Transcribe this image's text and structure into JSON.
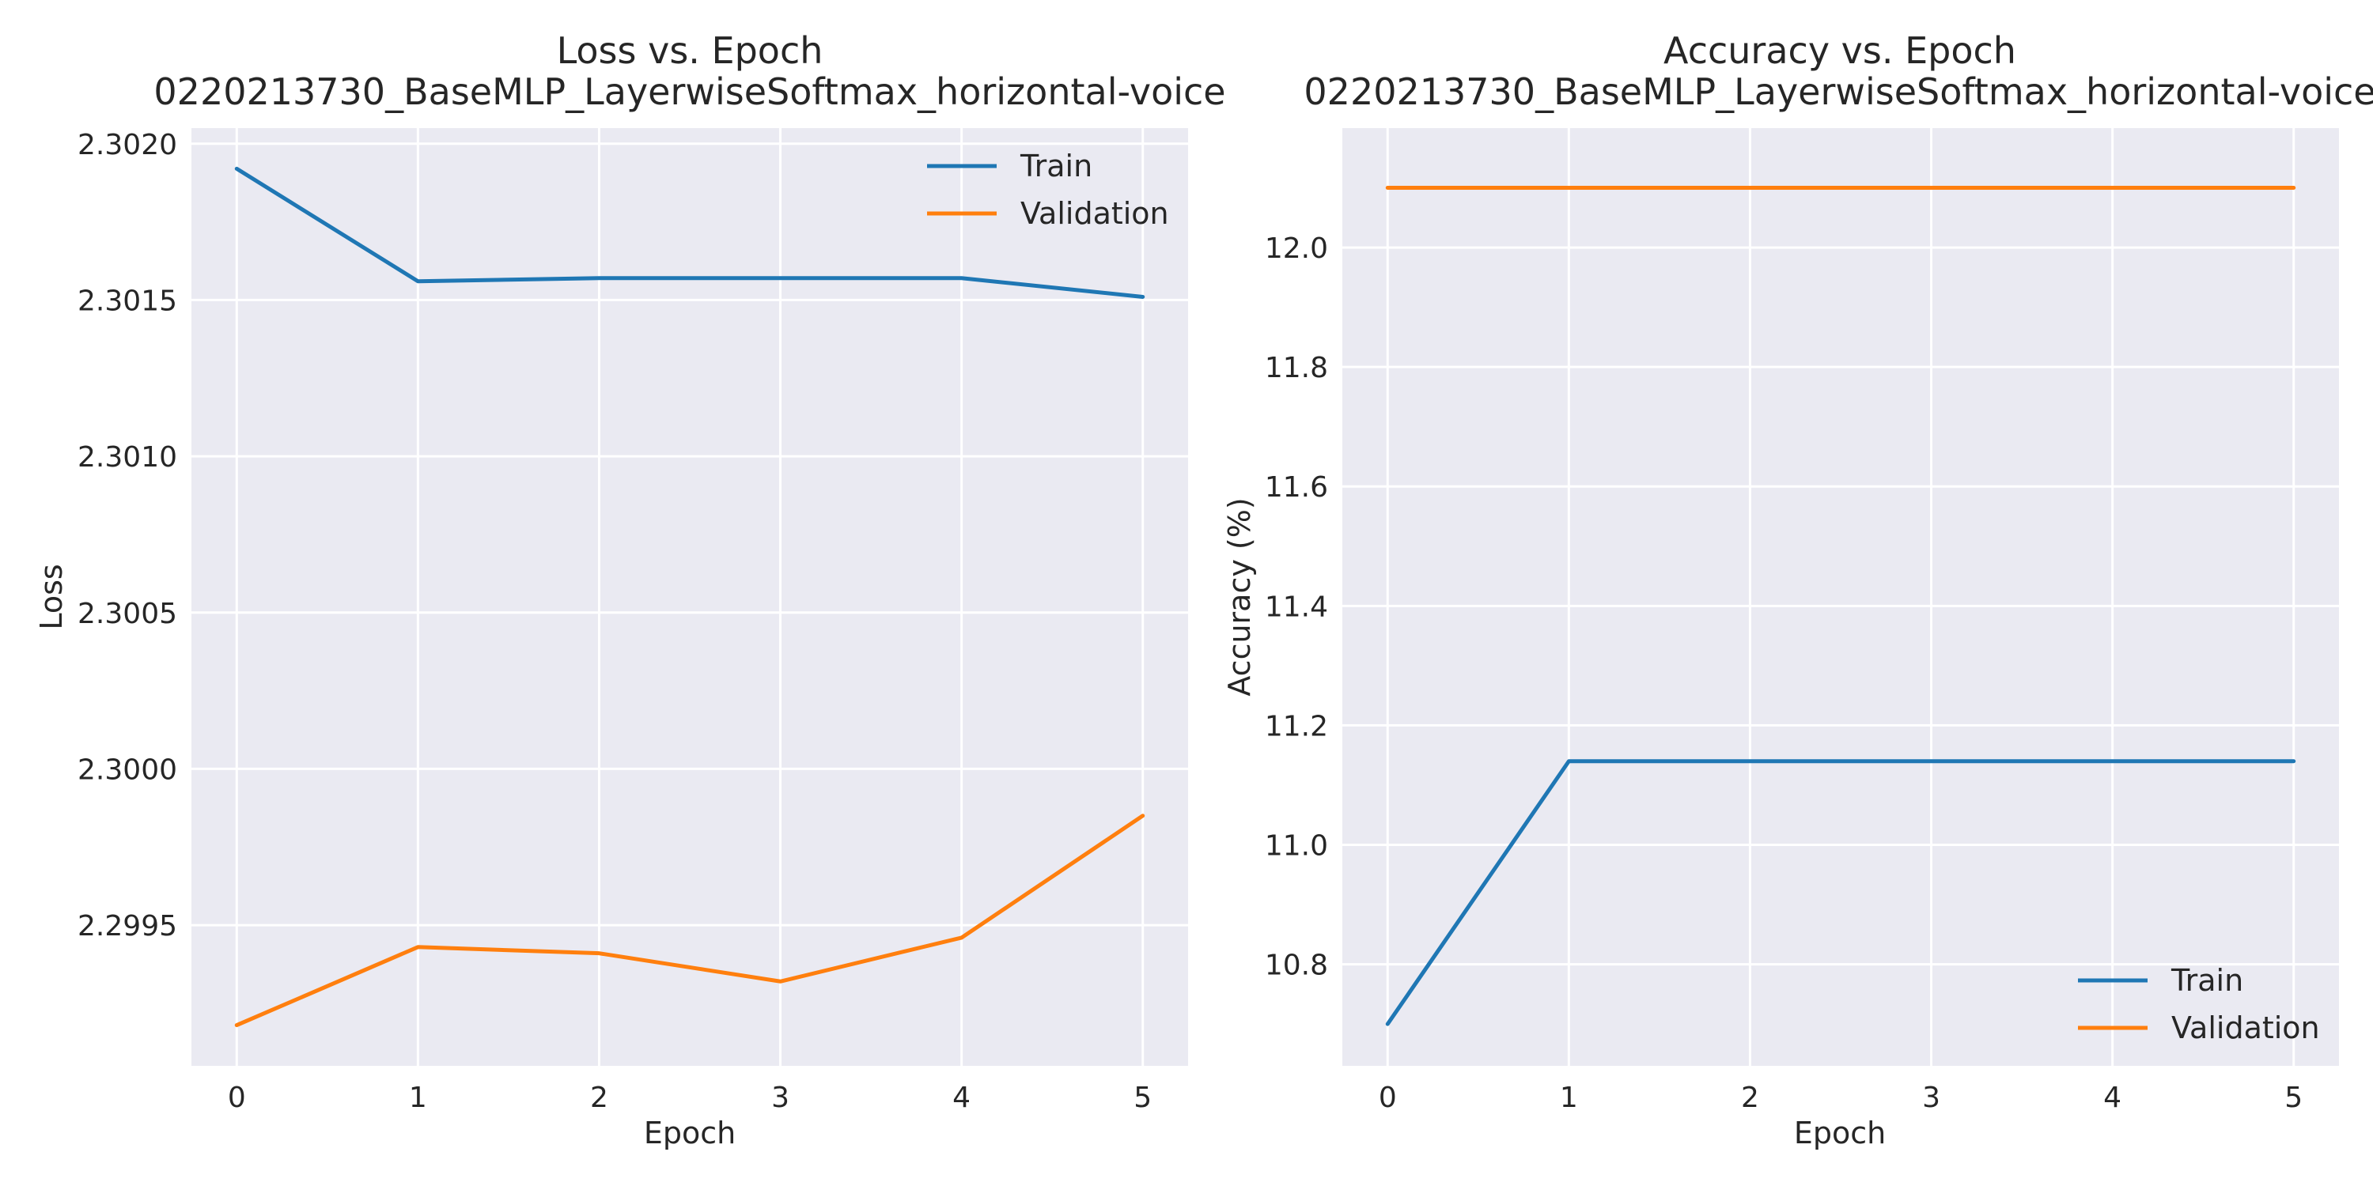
{
  "colors": {
    "background": "#ffffff",
    "axes_face": "#eaeaf2",
    "grid": "#ffffff",
    "text": "#262626",
    "train": "#1f77b4",
    "validation": "#ff7f0e"
  },
  "chart_data": [
    {
      "type": "line",
      "title": "Loss vs. Epoch",
      "subtitle": "0220213730_BaseMLP_LayerwiseSoftmax_horizontal-voice",
      "xlabel": "Epoch",
      "ylabel": "Loss",
      "x": [
        0,
        1,
        2,
        3,
        4,
        5
      ],
      "xticks": [
        "0",
        "1",
        "2",
        "3",
        "4",
        "5"
      ],
      "xlim": [
        -0.25,
        5.25
      ],
      "yticks": [
        "2.2995",
        "2.3000",
        "2.3005",
        "2.3010",
        "2.3015",
        "2.3020"
      ],
      "ylim": [
        2.29905,
        2.30205
      ],
      "grid": true,
      "legend": "top-right",
      "series": [
        {
          "name": "Train",
          "color": "#1f77b4",
          "values": [
            2.30192,
            2.30156,
            2.30157,
            2.30157,
            2.30157,
            2.30151
          ]
        },
        {
          "name": "Validation",
          "color": "#ff7f0e",
          "values": [
            2.29918,
            2.29943,
            2.29941,
            2.29932,
            2.29946,
            2.29985
          ]
        }
      ]
    },
    {
      "type": "line",
      "title": "Accuracy vs. Epoch",
      "subtitle": "0220213730_BaseMLP_LayerwiseSoftmax_horizontal-voice",
      "xlabel": "Epoch",
      "ylabel": "Accuracy (%)",
      "x": [
        0,
        1,
        2,
        3,
        4,
        5
      ],
      "xticks": [
        "0",
        "1",
        "2",
        "3",
        "4",
        "5"
      ],
      "xlim": [
        -0.25,
        5.25
      ],
      "yticks": [
        "10.8",
        "11.0",
        "11.2",
        "11.4",
        "11.6",
        "11.8",
        "12.0"
      ],
      "ylim": [
        10.63,
        12.2
      ],
      "grid": true,
      "legend": "bottom-right",
      "series": [
        {
          "name": "Train",
          "color": "#1f77b4",
          "values": [
            10.7,
            11.14,
            11.14,
            11.14,
            11.14,
            11.14
          ]
        },
        {
          "name": "Validation",
          "color": "#ff7f0e",
          "values": [
            12.1,
            12.1,
            12.1,
            12.1,
            12.1,
            12.1
          ]
        }
      ]
    }
  ]
}
